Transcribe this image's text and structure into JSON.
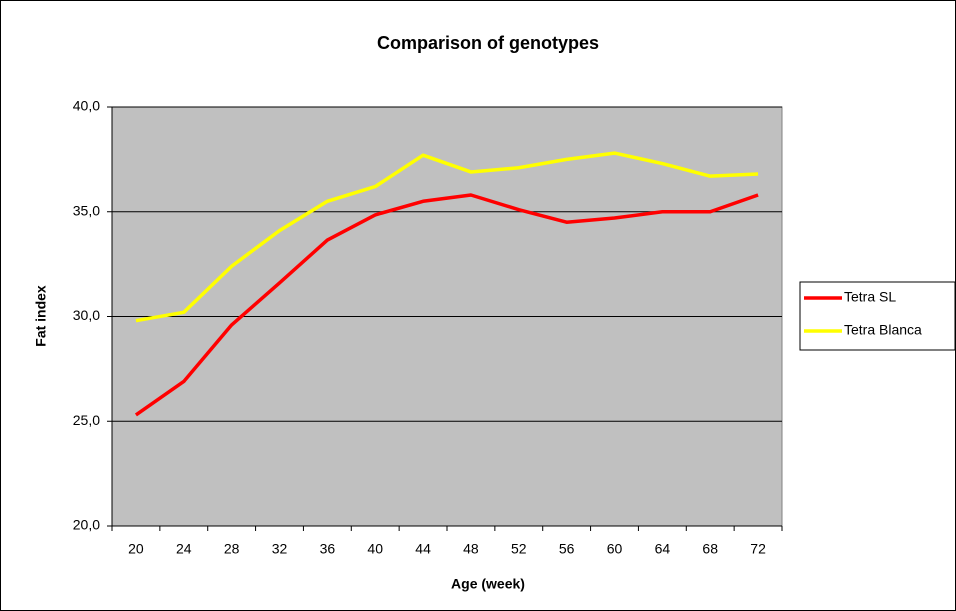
{
  "chart_data": {
    "type": "line",
    "title": "Comparison of genotypes",
    "x_label": "Age (week)",
    "y_label": "Fat index",
    "categories": [
      "20",
      "24",
      "28",
      "32",
      "36",
      "40",
      "44",
      "48",
      "52",
      "56",
      "60",
      "64",
      "68",
      "72"
    ],
    "series": [
      {
        "name": "Tetra SL",
        "color": "#ff0000",
        "values": [
          25.3,
          26.9,
          29.6,
          31.6,
          33.65,
          34.85,
          35.5,
          35.8,
          35.1,
          34.5,
          34.7,
          35.0,
          35.0,
          35.8
        ]
      },
      {
        "name": "Tetra Blanca",
        "color": "#ffff00",
        "values": [
          29.8,
          30.2,
          32.4,
          34.1,
          35.5,
          36.2,
          37.7,
          36.9,
          37.1,
          37.5,
          37.8,
          37.3,
          36.7,
          36.8
        ]
      }
    ],
    "ylim": [
      20,
      40
    ],
    "yticks": [
      {
        "value": 20,
        "label": "20,0"
      },
      {
        "value": 25,
        "label": "25,0"
      },
      {
        "value": 30,
        "label": "30,0"
      },
      {
        "value": 35,
        "label": "35,0"
      },
      {
        "value": 40,
        "label": "40,0"
      }
    ],
    "grid": true,
    "legend": "right",
    "plot_background": "#c0c0c0"
  }
}
